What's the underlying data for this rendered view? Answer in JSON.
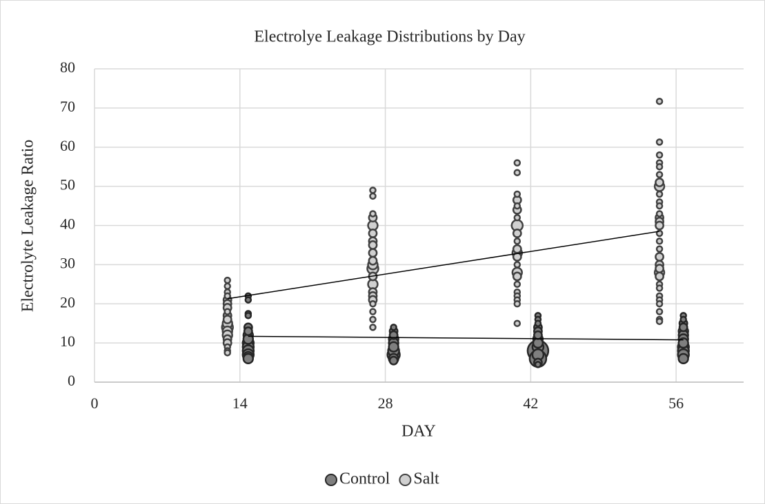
{
  "chart_data": {
    "type": "bubble",
    "title": "Electrolye Leakage Distributions by Day",
    "x_label": "DAY",
    "y_label": "Electrolyte Leakage Ratio",
    "xlim": [
      0,
      62.5
    ],
    "xticks": [
      0,
      14,
      28,
      42,
      56
    ],
    "ylim": [
      0,
      80
    ],
    "yticks": [
      0,
      10,
      20,
      30,
      40,
      50,
      60,
      70,
      80
    ],
    "grid": true,
    "legend": "bottom",
    "series": [
      {
        "name": "Control",
        "color": "#7f7f7f",
        "edge": "#262626",
        "x": [
          14.8,
          14.8,
          14.8,
          14.8,
          14.8,
          14.8,
          14.8,
          14.8,
          14.8,
          14.8,
          14.8,
          14.8,
          14.8,
          14.8,
          28.8,
          28.8,
          28.8,
          28.8,
          28.8,
          28.8,
          28.8,
          28.8,
          28.8,
          28.8,
          42.7,
          42.7,
          42.7,
          42.7,
          42.7,
          42.7,
          42.7,
          42.7,
          42.7,
          42.7,
          42.7,
          42.7,
          42.7,
          42.7,
          56.7,
          56.7,
          56.7,
          56.7,
          56.7,
          56.7,
          56.7,
          56.7,
          56.7,
          56.7,
          56.7,
          56.7
        ],
        "values": [
          22,
          21,
          17.5,
          17,
          14,
          13,
          12,
          11,
          10,
          9,
          8,
          7,
          6.5,
          6,
          14,
          13,
          12,
          11,
          10,
          9,
          8,
          7,
          6,
          5.5,
          17,
          16,
          15,
          14,
          13,
          12,
          11,
          10,
          9,
          8,
          7,
          6,
          5,
          4.5,
          17,
          16,
          15,
          14,
          13,
          12,
          11,
          10,
          9,
          8,
          7,
          6
        ],
        "sizes": [
          1,
          1,
          1,
          1,
          2,
          2,
          3,
          3,
          4,
          4,
          4,
          4,
          3,
          3,
          1,
          2,
          2,
          3,
          3,
          3,
          4,
          5,
          3,
          2,
          1,
          1,
          1,
          2,
          2,
          2,
          3,
          3,
          4,
          14,
          4,
          9,
          2,
          1,
          1,
          1,
          2,
          2,
          3,
          3,
          3,
          3,
          4,
          4,
          4,
          3
        ],
        "trendline": {
          "x": [
            14.8,
            56.7
          ],
          "y": [
            11.7,
            10.8
          ]
        }
      },
      {
        "name": "Salt",
        "color": "#d0d0d0",
        "edge": "#404040",
        "x": [
          12.8,
          12.8,
          12.8,
          12.8,
          12.8,
          12.8,
          12.8,
          12.8,
          12.8,
          12.8,
          12.8,
          12.8,
          12.8,
          12.8,
          12.8,
          12.8,
          12.8,
          12.8,
          12.8,
          26.8,
          26.8,
          26.8,
          26.8,
          26.8,
          26.8,
          26.8,
          26.8,
          26.8,
          26.8,
          26.8,
          26.8,
          26.8,
          26.8,
          26.8,
          26.8,
          26.8,
          26.8,
          26.8,
          26.8,
          26.8,
          40.7,
          40.7,
          40.7,
          40.7,
          40.7,
          40.7,
          40.7,
          40.7,
          40.7,
          40.7,
          40.7,
          40.7,
          40.7,
          40.7,
          40.7,
          40.7,
          40.7,
          40.7,
          40.7,
          40.7,
          40.7,
          40.7,
          54.4,
          54.4,
          54.4,
          54.4,
          54.4,
          54.4,
          54.4,
          54.4,
          54.4,
          54.4,
          54.4,
          54.4,
          54.4,
          54.4,
          54.4,
          54.4,
          54.4,
          54.4,
          54.4,
          54.4,
          54.4,
          54.4,
          54.4,
          54.4,
          54.4,
          54.4,
          54.4,
          54.4,
          54.4,
          54.4,
          54.4
        ],
        "values": [
          26,
          24.5,
          23,
          22,
          21,
          20,
          19,
          18,
          17,
          16,
          15,
          14,
          13,
          12,
          11,
          10,
          9,
          8,
          7.5,
          49,
          47.5,
          43,
          42,
          40,
          38,
          36,
          35,
          33,
          31,
          30,
          29,
          27,
          25,
          23,
          22,
          21,
          20,
          18,
          16,
          14,
          56,
          53.5,
          48,
          46.5,
          45,
          44,
          42,
          40,
          38,
          36,
          34,
          33,
          32,
          30,
          28,
          27,
          25,
          23,
          22,
          21,
          20,
          15,
          71.7,
          61.3,
          58,
          56,
          55,
          53,
          51,
          50,
          48,
          46,
          45,
          43,
          42,
          41,
          40,
          38,
          36,
          34,
          32,
          30,
          29,
          28,
          27,
          25,
          24,
          22,
          21,
          20,
          18,
          16,
          15.5
        ],
        "sizes": [
          1,
          1,
          1,
          1,
          2,
          2,
          2,
          1,
          2,
          2,
          3,
          4,
          3,
          3,
          2,
          2,
          1,
          1,
          1,
          1,
          1,
          1,
          2,
          3,
          2,
          2,
          2,
          2,
          2,
          3,
          4,
          2,
          3,
          2,
          2,
          2,
          1,
          1,
          1,
          1,
          1,
          1,
          1,
          2,
          1,
          2,
          1,
          4,
          2,
          1,
          2,
          3,
          2,
          1,
          3,
          2,
          1,
          1,
          1,
          1,
          1,
          1,
          1,
          1,
          1,
          1,
          1,
          1,
          2,
          3,
          1,
          1,
          1,
          1,
          2,
          2,
          2,
          1,
          1,
          1,
          2,
          2,
          2,
          3,
          2,
          1,
          1,
          1,
          1,
          1,
          1,
          1,
          1
        ],
        "trendline": {
          "x": [
            12.8,
            54.4
          ],
          "y": [
            21.3,
            38.5
          ]
        }
      }
    ]
  }
}
